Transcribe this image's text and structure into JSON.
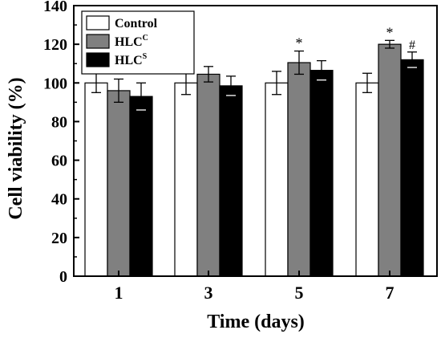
{
  "chart_data": {
    "type": "bar",
    "xlabel": "Time (days)",
    "ylabel": "Cell viability (%)",
    "categories": [
      "1",
      "3",
      "5",
      "7"
    ],
    "ylim": [
      0,
      140
    ],
    "yticks": [
      "0",
      "20",
      "40",
      "60",
      "80",
      "100",
      "120",
      "140"
    ],
    "series": [
      {
        "name": "Control",
        "sub": "",
        "color": "#ffffff",
        "values": [
          100,
          100,
          100,
          100
        ],
        "errors": [
          5,
          6,
          6,
          5
        ],
        "annotations": [
          "",
          "",
          "",
          ""
        ]
      },
      {
        "name": "HLC",
        "sub": "C",
        "color": "#808080",
        "values": [
          96,
          104.5,
          110.5,
          120
        ],
        "errors": [
          6,
          4,
          6,
          2
        ],
        "annotations": [
          "",
          "",
          "*",
          "*"
        ]
      },
      {
        "name": "HLC",
        "sub": "S",
        "color": "#000000",
        "values": [
          93,
          98.5,
          106.5,
          112
        ],
        "errors": [
          7,
          5,
          5,
          4
        ],
        "annotations": [
          "",
          "",
          "",
          "#"
        ]
      }
    ],
    "legend_position": "top-left"
  }
}
